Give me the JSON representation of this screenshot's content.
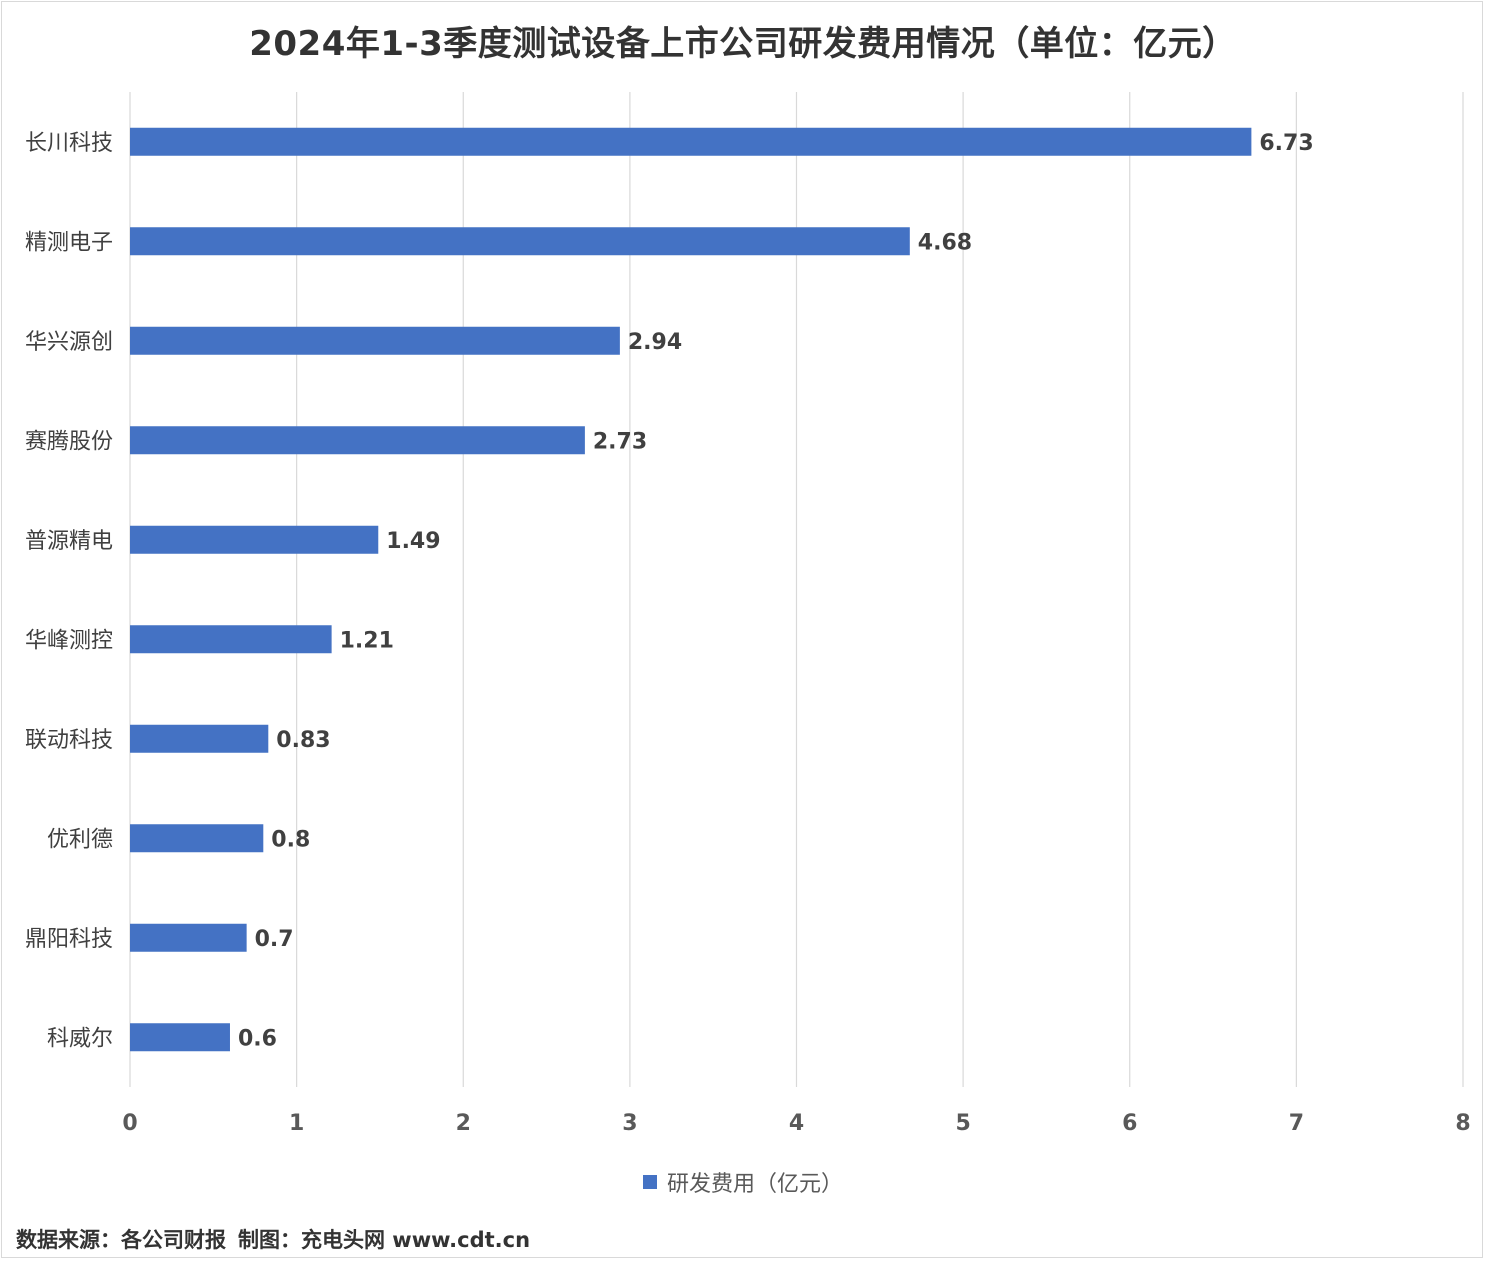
{
  "title": "2024年1-3季度测试设备上市公司研发费用情况（单位：亿元）",
  "source": {
    "data_source": "数据来源：各公司财报",
    "made_by": "制图：充电头网 www.cdt.cn"
  },
  "colors": {
    "bar": "#4472C4",
    "grid": "#d9d9d9",
    "label": "#404040",
    "axis_text": "#595959"
  },
  "chart_data": {
    "type": "bar",
    "orientation": "horizontal",
    "title": "2024年1-3季度测试设备上市公司研发费用情况（单位：亿元）",
    "categories": [
      "长川科技",
      "精测电子",
      "华兴源创",
      "赛腾股份",
      "普源精电",
      "华峰测控",
      "联动科技",
      "优利德",
      "鼎阳科技",
      "科威尔"
    ],
    "series": [
      {
        "name": "研发费用（亿元）",
        "values": [
          6.73,
          4.68,
          2.94,
          2.73,
          1.49,
          1.21,
          0.83,
          0.8,
          0.7,
          0.6
        ],
        "labels": [
          "6.73",
          "4.68",
          "2.94",
          "2.73",
          "1.49",
          "1.21",
          "0.83",
          "0.8",
          "0.7",
          "0.6"
        ]
      }
    ],
    "xlim": [
      0,
      8
    ],
    "xticks": [
      "0",
      "1",
      "2",
      "3",
      "4",
      "5",
      "6",
      "7",
      "8"
    ],
    "grid": true,
    "legend_position": "bottom"
  }
}
